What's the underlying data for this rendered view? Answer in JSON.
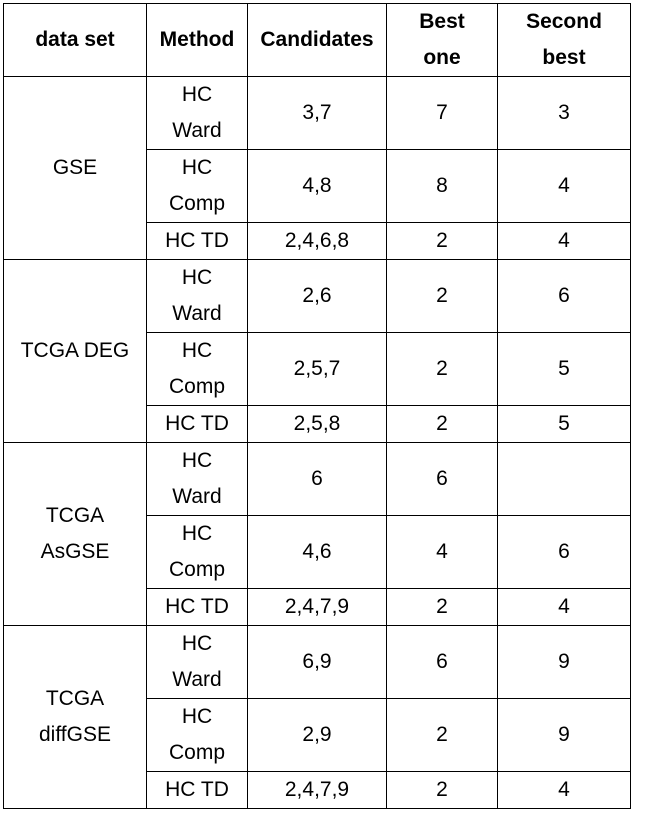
{
  "header": {
    "dataset": "data set",
    "method": "Method",
    "candidates": "Candidates",
    "best_l1": "Best",
    "best_l2": "one",
    "second_l1": "Second",
    "second_l2": "best"
  },
  "groups": [
    {
      "name_l1": "GSE",
      "name_l2": "",
      "rows": [
        {
          "m1": "HC",
          "m2": "Ward",
          "candidates": "3,7",
          "best": "7",
          "second": "3"
        },
        {
          "m1": "HC",
          "m2": "Comp",
          "candidates": "4,8",
          "best": "8",
          "second": "4"
        },
        {
          "m1": "HC TD",
          "m2": "",
          "candidates": "2,4,6,8",
          "best": "2",
          "second": "4"
        }
      ]
    },
    {
      "name_l1": "TCGA DEG",
      "name_l2": "",
      "rows": [
        {
          "m1": "HC",
          "m2": "Ward",
          "candidates": "2,6",
          "best": "2",
          "second": "6"
        },
        {
          "m1": "HC",
          "m2": "Comp",
          "candidates": "2,5,7",
          "best": "2",
          "second": "5"
        },
        {
          "m1": "HC TD",
          "m2": "",
          "candidates": "2,5,8",
          "best": "2",
          "second": "5"
        }
      ]
    },
    {
      "name_l1": "TCGA",
      "name_l2": "AsGSE",
      "rows": [
        {
          "m1": "HC",
          "m2": "Ward",
          "candidates": "6",
          "best": "6",
          "second": ""
        },
        {
          "m1": "HC",
          "m2": "Comp",
          "candidates": "4,6",
          "best": "4",
          "second": "6"
        },
        {
          "m1": "HC TD",
          "m2": "",
          "candidates": "2,4,7,9",
          "best": "2",
          "second": "4"
        }
      ]
    },
    {
      "name_l1": "TCGA",
      "name_l2": "diffGSE",
      "rows": [
        {
          "m1": "HC",
          "m2": "Ward",
          "candidates": "6,9",
          "best": "6",
          "second": "9"
        },
        {
          "m1": "HC",
          "m2": "Comp",
          "candidates": "2,9",
          "best": "2",
          "second": "9"
        },
        {
          "m1": "HC TD",
          "m2": "",
          "candidates": "2,4,7,9",
          "best": "2",
          "second": "4"
        }
      ]
    }
  ]
}
